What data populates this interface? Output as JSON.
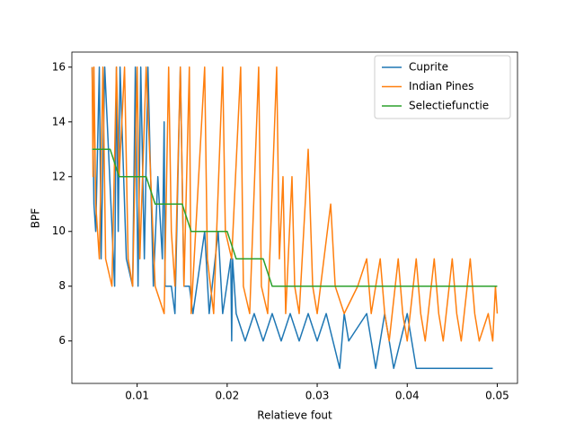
{
  "chart_data": {
    "type": "line",
    "xlabel": "Relatieve fout",
    "ylabel": "BPF",
    "xlim": [
      0.00275,
      0.05225
    ],
    "ylim": [
      4.45,
      16.55
    ],
    "xticks": [
      0.01,
      0.02,
      0.03,
      0.04,
      0.05
    ],
    "yticks": [
      6,
      8,
      10,
      12,
      14,
      16
    ],
    "legend": "upper right",
    "grid": false,
    "series": [
      {
        "name": "Cuprite",
        "color": "#1f77b4",
        "x": [
          0.005,
          0.0052,
          0.0054,
          0.0058,
          0.006,
          0.0064,
          0.0075,
          0.0077,
          0.0079,
          0.0081,
          0.0088,
          0.0095,
          0.0098,
          0.0101,
          0.0104,
          0.0108,
          0.0112,
          0.0118,
          0.0123,
          0.0128,
          0.013,
          0.0131,
          0.0138,
          0.0142,
          0.0148,
          0.0152,
          0.0158,
          0.0162,
          0.0175,
          0.018,
          0.019,
          0.0195,
          0.0204,
          0.0205,
          0.0206,
          0.021,
          0.022,
          0.023,
          0.024,
          0.025,
          0.026,
          0.027,
          0.028,
          0.029,
          0.03,
          0.031,
          0.0325,
          0.033,
          0.0335,
          0.0355,
          0.0365,
          0.0375,
          0.0385,
          0.04,
          0.0405,
          0.041,
          0.0495
        ],
        "values": [
          16,
          11,
          10,
          16,
          9,
          16,
          8,
          16,
          10,
          16,
          9,
          8,
          16,
          8,
          16,
          9,
          16,
          8,
          12,
          9,
          14,
          8,
          8,
          7,
          16,
          8,
          8,
          7,
          10,
          7,
          10,
          7,
          9,
          6,
          9,
          7,
          6,
          7,
          6,
          7,
          6,
          7,
          6,
          7,
          6,
          7,
          5,
          7,
          6,
          7,
          5,
          7,
          5,
          7,
          6,
          5,
          5
        ]
      },
      {
        "name": "Indian Pines",
        "color": "#ff7f0e",
        "x": [
          0.005,
          0.0051,
          0.0052,
          0.0054,
          0.0056,
          0.0058,
          0.0062,
          0.0065,
          0.0072,
          0.0077,
          0.008,
          0.0086,
          0.009,
          0.0095,
          0.01,
          0.0103,
          0.011,
          0.012,
          0.013,
          0.0135,
          0.0138,
          0.0142,
          0.0148,
          0.0152,
          0.0158,
          0.016,
          0.0175,
          0.0178,
          0.0185,
          0.0195,
          0.0198,
          0.0205,
          0.0215,
          0.0218,
          0.0225,
          0.0235,
          0.0238,
          0.0245,
          0.0255,
          0.0258,
          0.0262,
          0.0265,
          0.0272,
          0.0275,
          0.028,
          0.0285,
          0.029,
          0.0295,
          0.03,
          0.0315,
          0.032,
          0.033,
          0.0345,
          0.0355,
          0.036,
          0.0365,
          0.037,
          0.0375,
          0.038,
          0.039,
          0.0395,
          0.04,
          0.041,
          0.0415,
          0.042,
          0.043,
          0.0435,
          0.044,
          0.045,
          0.0455,
          0.046,
          0.047,
          0.0475,
          0.048,
          0.049,
          0.0495,
          0.0498,
          0.05
        ],
        "values": [
          16,
          12,
          16,
          11,
          10,
          9,
          16,
          9,
          8,
          16,
          12,
          16,
          9,
          8,
          16,
          9,
          16,
          8,
          7,
          16,
          10,
          8,
          16,
          8,
          16,
          7,
          16,
          9,
          7,
          16,
          10,
          9,
          16,
          8,
          7,
          16,
          8,
          7,
          16,
          9,
          12,
          7,
          12,
          8,
          7,
          10,
          13,
          8,
          7,
          11,
          8,
          7,
          8,
          9,
          7,
          8,
          9,
          7,
          6,
          9,
          7,
          6,
          9,
          7,
          6,
          9,
          7,
          6,
          9,
          7,
          6,
          9,
          7,
          6,
          7,
          6,
          8,
          7
        ]
      },
      {
        "name": "Selectiefunctie",
        "color": "#2ca02c",
        "x": [
          0.005,
          0.007,
          0.008,
          0.011,
          0.012,
          0.015,
          0.016,
          0.02,
          0.021,
          0.024,
          0.025,
          0.05
        ],
        "values": [
          13,
          13,
          12,
          12,
          11,
          11,
          10,
          10,
          9,
          9,
          8,
          8
        ]
      }
    ]
  }
}
